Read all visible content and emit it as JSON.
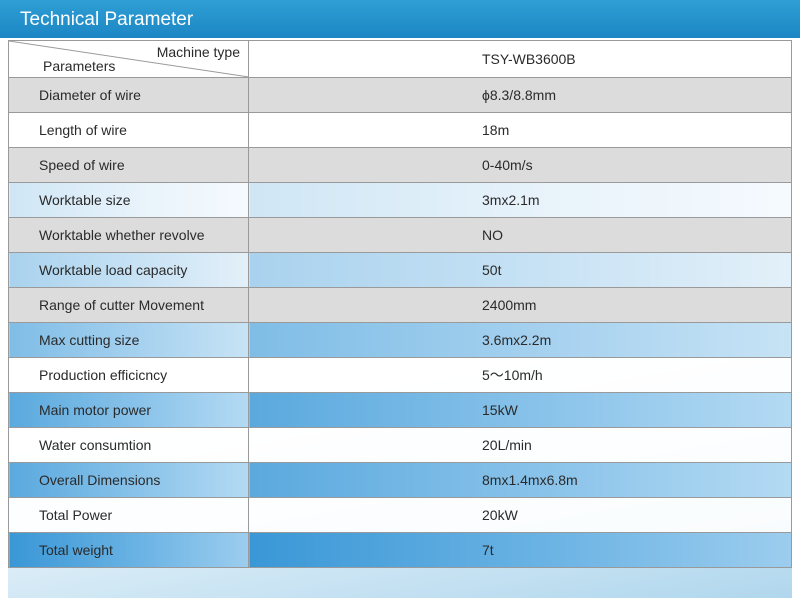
{
  "header": {
    "title": "Technical Parameter"
  },
  "table": {
    "head": {
      "machine_type_label": "Machine type",
      "parameters_label": "Parameters",
      "model": "TSY-WB3600B"
    },
    "rows": [
      {
        "param": "Diameter of  wire",
        "value": "ϕ8.3/8.8mm"
      },
      {
        "param": "Length of wire",
        "value": "18m"
      },
      {
        "param": "Speed of wire",
        "value": "0-40m/s"
      },
      {
        "param": "Worktable size",
        "value": "3mx2.1m"
      },
      {
        "param": "Worktable whether revolve",
        "value": "NO"
      },
      {
        "param": "Worktable load capacity",
        "value": "50t"
      },
      {
        "param": "Range of cutter Movement",
        "value": "2400mm"
      },
      {
        "param": "Max cutting size",
        "value": "3.6mx2.2m"
      },
      {
        "param": "Production efficicncy",
        "value": "5～10m/h"
      },
      {
        "param": "Main motor power",
        "value": "15kW"
      },
      {
        "param": "Water consumtion",
        "value": "20L/min"
      },
      {
        "param": "Overall Dimensions",
        "value": "8mx1.4mx6.8m"
      },
      {
        "param": "Total Power",
        "value": "20kW"
      },
      {
        "param": "Total weight",
        "value": "7t"
      }
    ]
  }
}
